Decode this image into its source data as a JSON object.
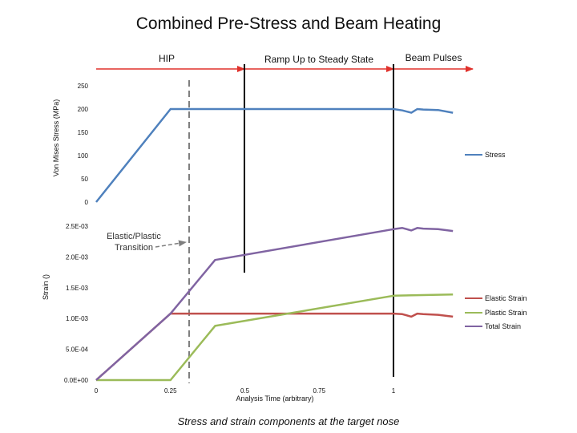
{
  "title": "Combined Pre-Stress and Beam Heating",
  "caption": "Stress and strain components at the target nose",
  "phases": [
    "HIP",
    "Ramp Up to Steady State",
    "Beam Pulses"
  ],
  "annotation": [
    "Elastic/Plastic",
    "Transition"
  ],
  "colors": {
    "stress": "#4f81bd",
    "elastic": "#c0504d",
    "plastic": "#9bbb59",
    "total": "#8064a2",
    "phase_arrow": "#e0312b",
    "annotation_arrow": "#7f7f7f"
  },
  "chart_data": [
    {
      "type": "line",
      "title": "",
      "ylabel": "Von Mises Stress (MPa)",
      "ylim": [
        0,
        250
      ],
      "yticks": [
        "0",
        "50",
        "100",
        "150",
        "200",
        "250"
      ],
      "legend": "right",
      "series": [
        {
          "name": "Stress",
          "x": [
            0,
            0.25,
            0.5,
            0.75,
            0.98,
            1.0,
            1.03,
            1.06,
            1.08,
            1.1,
            1.15,
            1.2
          ],
          "y": [
            0,
            200,
            200,
            200,
            200,
            200,
            197,
            192,
            200,
            199,
            198,
            192
          ]
        }
      ]
    },
    {
      "type": "line",
      "title": "",
      "xlabel": "Analysis Time (arbitrary)",
      "ylabel": "Strain ()",
      "xlim": [
        0,
        1.25
      ],
      "xticks": [
        "0",
        "0.25",
        "0.5",
        "0.75",
        "1"
      ],
      "ylim": [
        0,
        0.0025
      ],
      "yticks": [
        "0.0E+00",
        "5.0E-04",
        "1.0E-03",
        "1.5E-03",
        "2.0E-03",
        "2.5E-03"
      ],
      "legend": "right",
      "series": [
        {
          "name": "Elastic Strain",
          "x": [
            0,
            0.25,
            0.5,
            0.75,
            1.0,
            1.03,
            1.06,
            1.08,
            1.1,
            1.15,
            1.2
          ],
          "y": [
            0,
            0.00108,
            0.00108,
            0.00108,
            0.00108,
            0.00107,
            0.00103,
            0.00108,
            0.00107,
            0.00106,
            0.00103
          ]
        },
        {
          "name": "Plastic Strain",
          "x": [
            0,
            0.25,
            0.4,
            1.0,
            1.2
          ],
          "y": [
            0,
            0,
            0.00088,
            0.00137,
            0.00139
          ]
        },
        {
          "name": "Total Strain",
          "x": [
            0,
            0.25,
            0.4,
            1.0,
            1.03,
            1.06,
            1.08,
            1.1,
            1.15,
            1.2
          ],
          "y": [
            0,
            0.00108,
            0.00195,
            0.00245,
            0.00247,
            0.00243,
            0.00247,
            0.00246,
            0.00245,
            0.00242
          ]
        }
      ]
    }
  ]
}
